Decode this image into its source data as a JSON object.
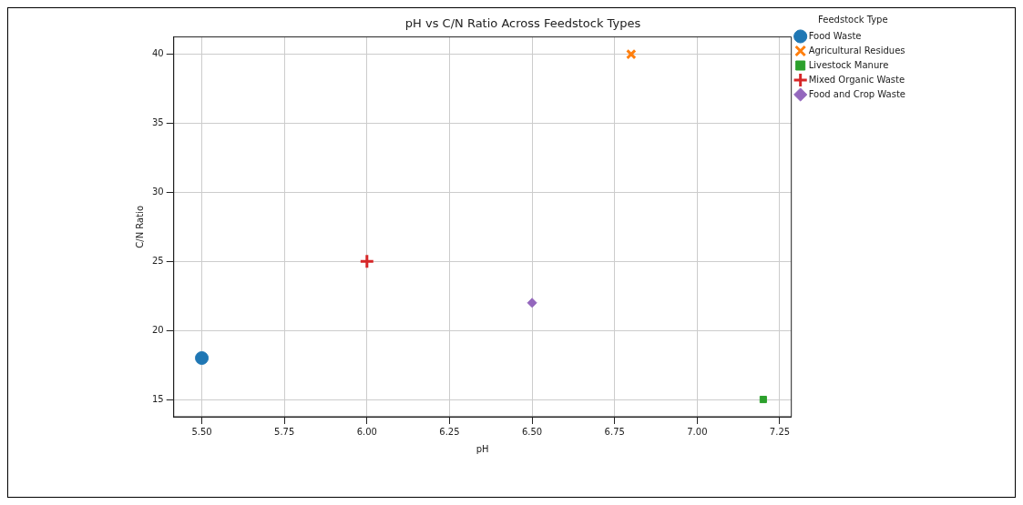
{
  "chart_data": {
    "type": "scatter",
    "title": "pH vs C/N Ratio Across Feedstock Types",
    "xlabel": "pH",
    "ylabel": "C/N Ratio",
    "legend_title": "Feedstock Type",
    "series": [
      {
        "name": "Food Waste",
        "color": "#1f77b4",
        "marker": "circle",
        "x": [
          5.5
        ],
        "values": [
          18
        ]
      },
      {
        "name": "Agricultural Residues",
        "color": "#ff7f0e",
        "marker": "cross",
        "x": [
          6.8
        ],
        "values": [
          40
        ]
      },
      {
        "name": "Livestock Manure",
        "color": "#2ca02c",
        "marker": "square",
        "x": [
          7.2
        ],
        "values": [
          15
        ]
      },
      {
        "name": "Mixed Organic Waste",
        "color": "#d62728",
        "marker": "plus",
        "x": [
          6.0
        ],
        "values": [
          25
        ]
      },
      {
        "name": "Food and Crop Waste",
        "color": "#9467bd",
        "marker": "diamond",
        "x": [
          6.5
        ],
        "values": [
          22
        ]
      }
    ],
    "xlim": [
      5.415,
      7.285
    ],
    "xticks": [
      {
        "value": 5.5,
        "label": "5.50"
      },
      {
        "value": 5.75,
        "label": "5.75"
      },
      {
        "value": 6.0,
        "label": "6.00"
      },
      {
        "value": 6.25,
        "label": "6.25"
      },
      {
        "value": 6.5,
        "label": "6.50"
      },
      {
        "value": 6.75,
        "label": "6.75"
      },
      {
        "value": 7.0,
        "label": "7.00"
      },
      {
        "value": 7.25,
        "label": "7.25"
      }
    ],
    "ylim": [
      13.75,
      41.25
    ],
    "yticks": [
      15,
      20,
      25,
      30,
      35,
      40
    ],
    "grid": true,
    "legend": "top right"
  }
}
